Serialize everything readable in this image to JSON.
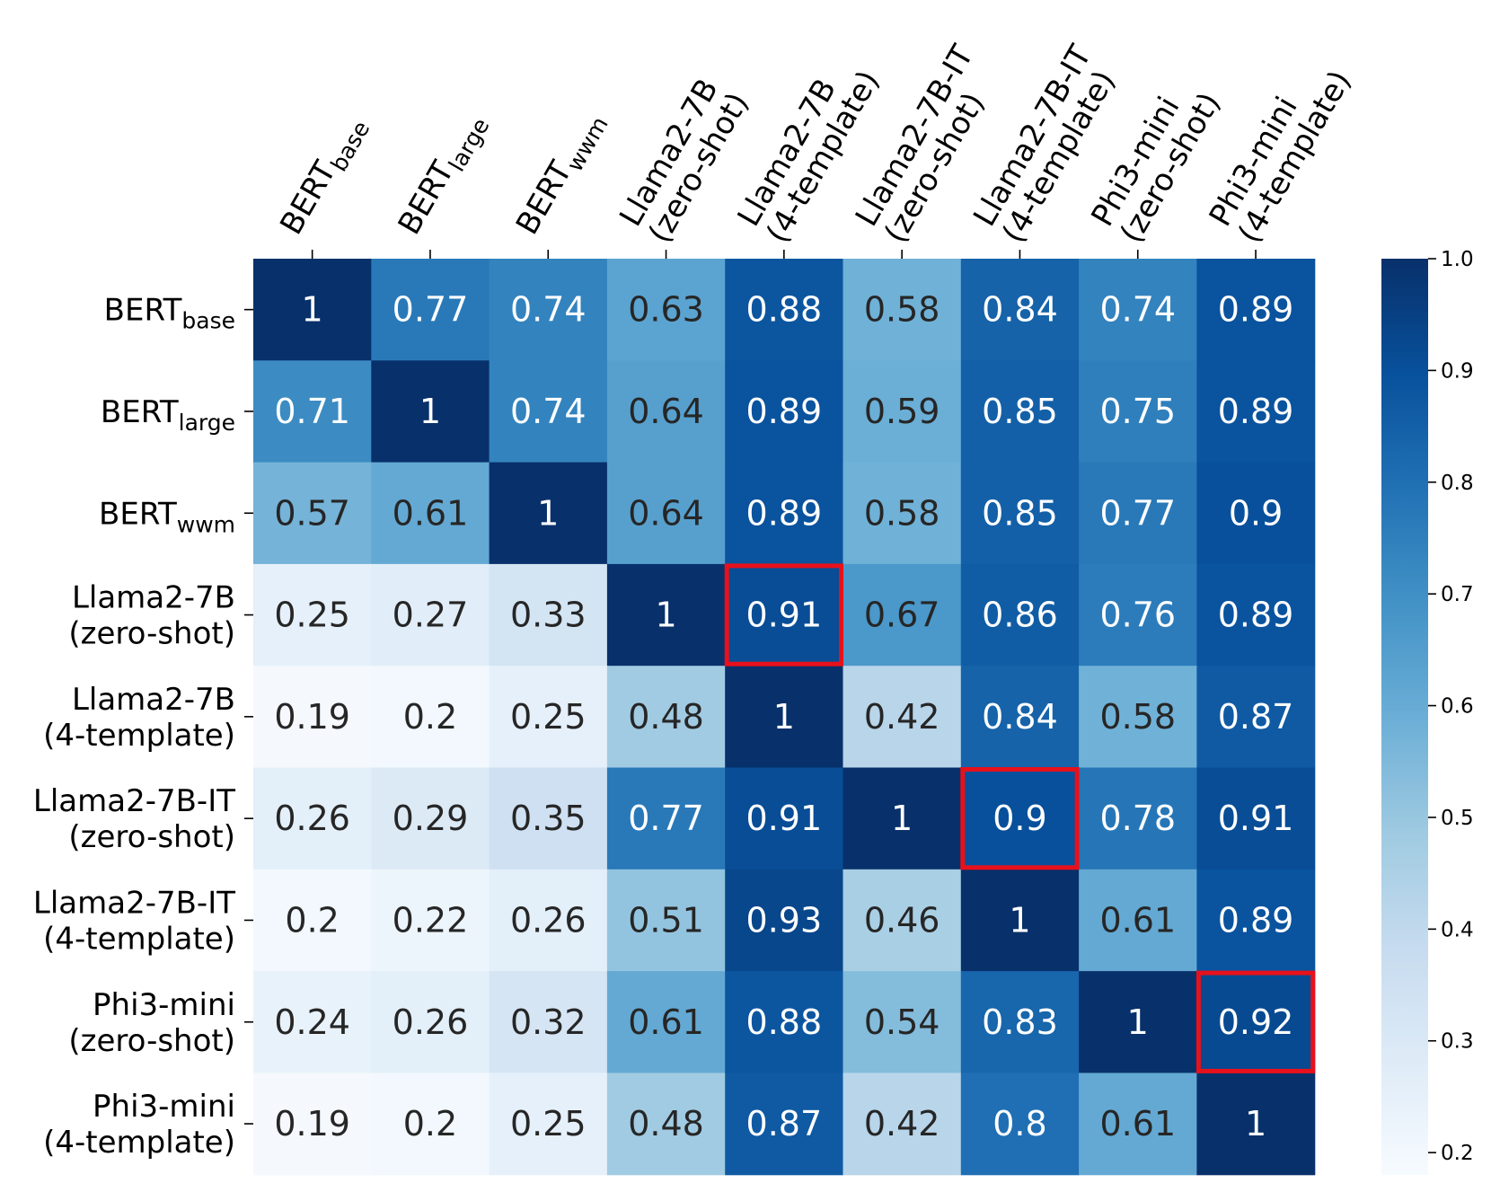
{
  "chart_data": {
    "type": "heatmap",
    "title": "",
    "xlabel": "",
    "ylabel": "",
    "columns": [
      {
        "lines": [
          {
            "base": "BERT",
            "sub": "base"
          }
        ]
      },
      {
        "lines": [
          {
            "base": "BERT",
            "sub": "large"
          }
        ]
      },
      {
        "lines": [
          {
            "base": "BERT",
            "sub": "wwm"
          }
        ]
      },
      {
        "lines": [
          {
            "base": "Llama2-7B",
            "sub": ""
          },
          {
            "base": "(zero-shot)",
            "sub": ""
          }
        ]
      },
      {
        "lines": [
          {
            "base": "Llama2-7B",
            "sub": ""
          },
          {
            "base": "(4-template)",
            "sub": ""
          }
        ]
      },
      {
        "lines": [
          {
            "base": "Llama2-7B-IT",
            "sub": ""
          },
          {
            "base": "(zero-shot)",
            "sub": ""
          }
        ]
      },
      {
        "lines": [
          {
            "base": "Llama2-7B-IT",
            "sub": ""
          },
          {
            "base": "(4-template)",
            "sub": ""
          }
        ]
      },
      {
        "lines": [
          {
            "base": "Phi3-mini",
            "sub": ""
          },
          {
            "base": "(zero-shot)",
            "sub": ""
          }
        ]
      },
      {
        "lines": [
          {
            "base": "Phi3-mini",
            "sub": ""
          },
          {
            "base": "(4-template)",
            "sub": ""
          }
        ]
      }
    ],
    "rows": [
      {
        "lines": [
          {
            "base": "BERT",
            "sub": "base"
          }
        ]
      },
      {
        "lines": [
          {
            "base": "BERT",
            "sub": "large"
          }
        ]
      },
      {
        "lines": [
          {
            "base": "BERT",
            "sub": "wwm"
          }
        ]
      },
      {
        "lines": [
          {
            "base": "Llama2-7B",
            "sub": ""
          },
          {
            "base": "(zero-shot)",
            "sub": ""
          }
        ]
      },
      {
        "lines": [
          {
            "base": "Llama2-7B",
            "sub": ""
          },
          {
            "base": "(4-template)",
            "sub": ""
          }
        ]
      },
      {
        "lines": [
          {
            "base": "Llama2-7B-IT",
            "sub": ""
          },
          {
            "base": "(zero-shot)",
            "sub": ""
          }
        ]
      },
      {
        "lines": [
          {
            "base": "Llama2-7B-IT",
            "sub": ""
          },
          {
            "base": "(4-template)",
            "sub": ""
          }
        ]
      },
      {
        "lines": [
          {
            "base": "Phi3-mini",
            "sub": ""
          },
          {
            "base": "(zero-shot)",
            "sub": ""
          }
        ]
      },
      {
        "lines": [
          {
            "base": "Phi3-mini",
            "sub": ""
          },
          {
            "base": "(4-template)",
            "sub": ""
          }
        ]
      }
    ],
    "values": [
      [
        1,
        0.77,
        0.74,
        0.63,
        0.88,
        0.58,
        0.84,
        0.74,
        0.89
      ],
      [
        0.71,
        1,
        0.74,
        0.64,
        0.89,
        0.59,
        0.85,
        0.75,
        0.89
      ],
      [
        0.57,
        0.61,
        1,
        0.64,
        0.89,
        0.58,
        0.85,
        0.77,
        0.9
      ],
      [
        0.25,
        0.27,
        0.33,
        1,
        0.91,
        0.67,
        0.86,
        0.76,
        0.89
      ],
      [
        0.19,
        0.2,
        0.25,
        0.48,
        1,
        0.42,
        0.84,
        0.58,
        0.87
      ],
      [
        0.26,
        0.29,
        0.35,
        0.77,
        0.91,
        1,
        0.9,
        0.78,
        0.91
      ],
      [
        0.2,
        0.22,
        0.26,
        0.51,
        0.93,
        0.46,
        1,
        0.61,
        0.89
      ],
      [
        0.24,
        0.26,
        0.32,
        0.61,
        0.88,
        0.54,
        0.83,
        1,
        0.92
      ],
      [
        0.19,
        0.2,
        0.25,
        0.48,
        0.87,
        0.42,
        0.8,
        0.61,
        1
      ]
    ],
    "highlighted_cells": [
      [
        3,
        4
      ],
      [
        5,
        6
      ],
      [
        7,
        8
      ]
    ],
    "highlight_color": "#e8111b",
    "colormap": "Blues",
    "vmin": 0.18,
    "vmax": 1.0,
    "colorbar_ticks": [
      "0.2",
      "0.3",
      "0.4",
      "0.5",
      "0.6",
      "0.7",
      "0.8",
      "0.9",
      "1.0"
    ],
    "text_color_dark": "#262626",
    "text_color_light": "#ffffff"
  }
}
